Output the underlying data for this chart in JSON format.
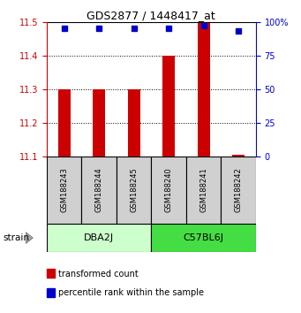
{
  "title": "GDS2877 / 1448417_at",
  "samples": [
    "GSM188243",
    "GSM188244",
    "GSM188245",
    "GSM188240",
    "GSM188241",
    "GSM188242"
  ],
  "bar_values": [
    11.3,
    11.3,
    11.3,
    11.4,
    11.497,
    11.105
  ],
  "bar_bottom": 11.1,
  "percentile_values": [
    95.5,
    95.5,
    95.5,
    95.5,
    97.0,
    93.5
  ],
  "ylim_left": [
    11.1,
    11.5
  ],
  "ylim_right": [
    0,
    100
  ],
  "yticks_left": [
    11.1,
    11.2,
    11.3,
    11.4,
    11.5
  ],
  "yticks_right": [
    0,
    25,
    50,
    75,
    100
  ],
  "ytick_labels_right": [
    "0",
    "25",
    "50",
    "75",
    "100%"
  ],
  "bar_color": "#cc0000",
  "marker_color": "#0000cc",
  "bar_width": 0.35,
  "groups": [
    {
      "label": "DBA2J",
      "start": 0,
      "end": 3,
      "color": "#ccffcc"
    },
    {
      "label": "C57BL6J",
      "start": 3,
      "end": 6,
      "color": "#44dd44"
    }
  ],
  "strain_label": "strain",
  "legend_items": [
    {
      "color": "#cc0000",
      "label": "transformed count"
    },
    {
      "color": "#0000cc",
      "label": "percentile rank within the sample"
    }
  ],
  "grid_color": "black",
  "left_axis_color": "#cc0000",
  "right_axis_color": "#0000cc",
  "background_color": "#ffffff",
  "sample_box_color": "#d0d0d0"
}
